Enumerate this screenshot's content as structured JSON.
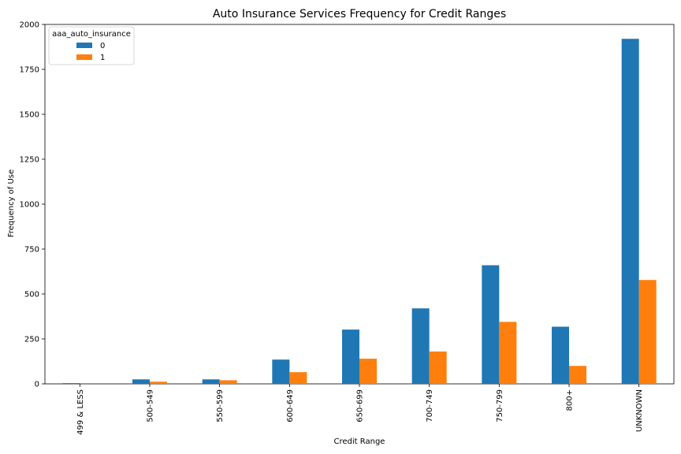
{
  "chart_data": {
    "type": "bar",
    "title": "Auto Insurance Services Frequency for Credit Ranges",
    "xlabel": "Credit Range",
    "ylabel": "Frequency of Use",
    "categories": [
      "499 & LESS",
      "500-549",
      "550-599",
      "600-649",
      "650-699",
      "700-749",
      "750-799",
      "800+",
      "UNKNOWN"
    ],
    "series": [
      {
        "name": "0",
        "color": "#1f77b4",
        "values": [
          4,
          25,
          25,
          135,
          302,
          420,
          660,
          318,
          1920
        ]
      },
      {
        "name": "1",
        "color": "#ff7f0e",
        "values": [
          0,
          12,
          20,
          65,
          140,
          180,
          345,
          100,
          578
        ]
      }
    ],
    "ylim": [
      0,
      2000
    ],
    "yticks": [
      0,
      250,
      500,
      750,
      1000,
      1250,
      1500,
      1750,
      2000
    ],
    "legend": {
      "title": "aaa_auto_insurance",
      "placement": "top-left"
    },
    "grid": false
  }
}
